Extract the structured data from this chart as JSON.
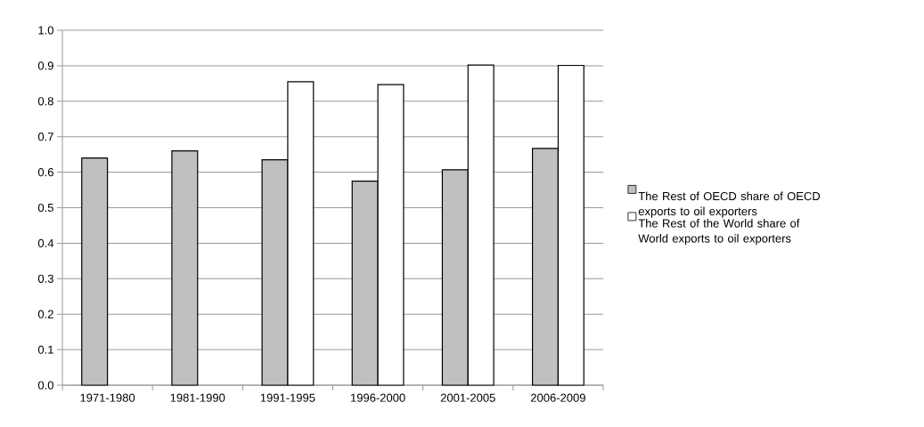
{
  "chart_data": {
    "type": "bar",
    "categories": [
      "1971-1980",
      "1981-1990",
      "1991-1995",
      "1996-2000",
      "2001-2005",
      "2006-2009"
    ],
    "series": [
      {
        "name": "The Rest of OECD share of OECD exports to oil exporters",
        "color": "#c0c0c0",
        "values": [
          0.64,
          0.66,
          0.635,
          0.575,
          0.607,
          0.667
        ]
      },
      {
        "name": "The Rest of the World share of World exports to oil exporters",
        "color": "#ffffff",
        "values": [
          null,
          null,
          0.855,
          0.847,
          0.902,
          0.901
        ]
      }
    ],
    "ylim": [
      0,
      1
    ],
    "yticks": [
      {
        "value": 0,
        "label": "0.0"
      },
      0.1,
      0.2,
      0.3,
      0.4,
      0.5,
      0.6,
      0.7,
      0.8,
      0.9,
      {
        "value": 1,
        "label": "1.0"
      }
    ],
    "grid": "y",
    "legend": "right"
  }
}
